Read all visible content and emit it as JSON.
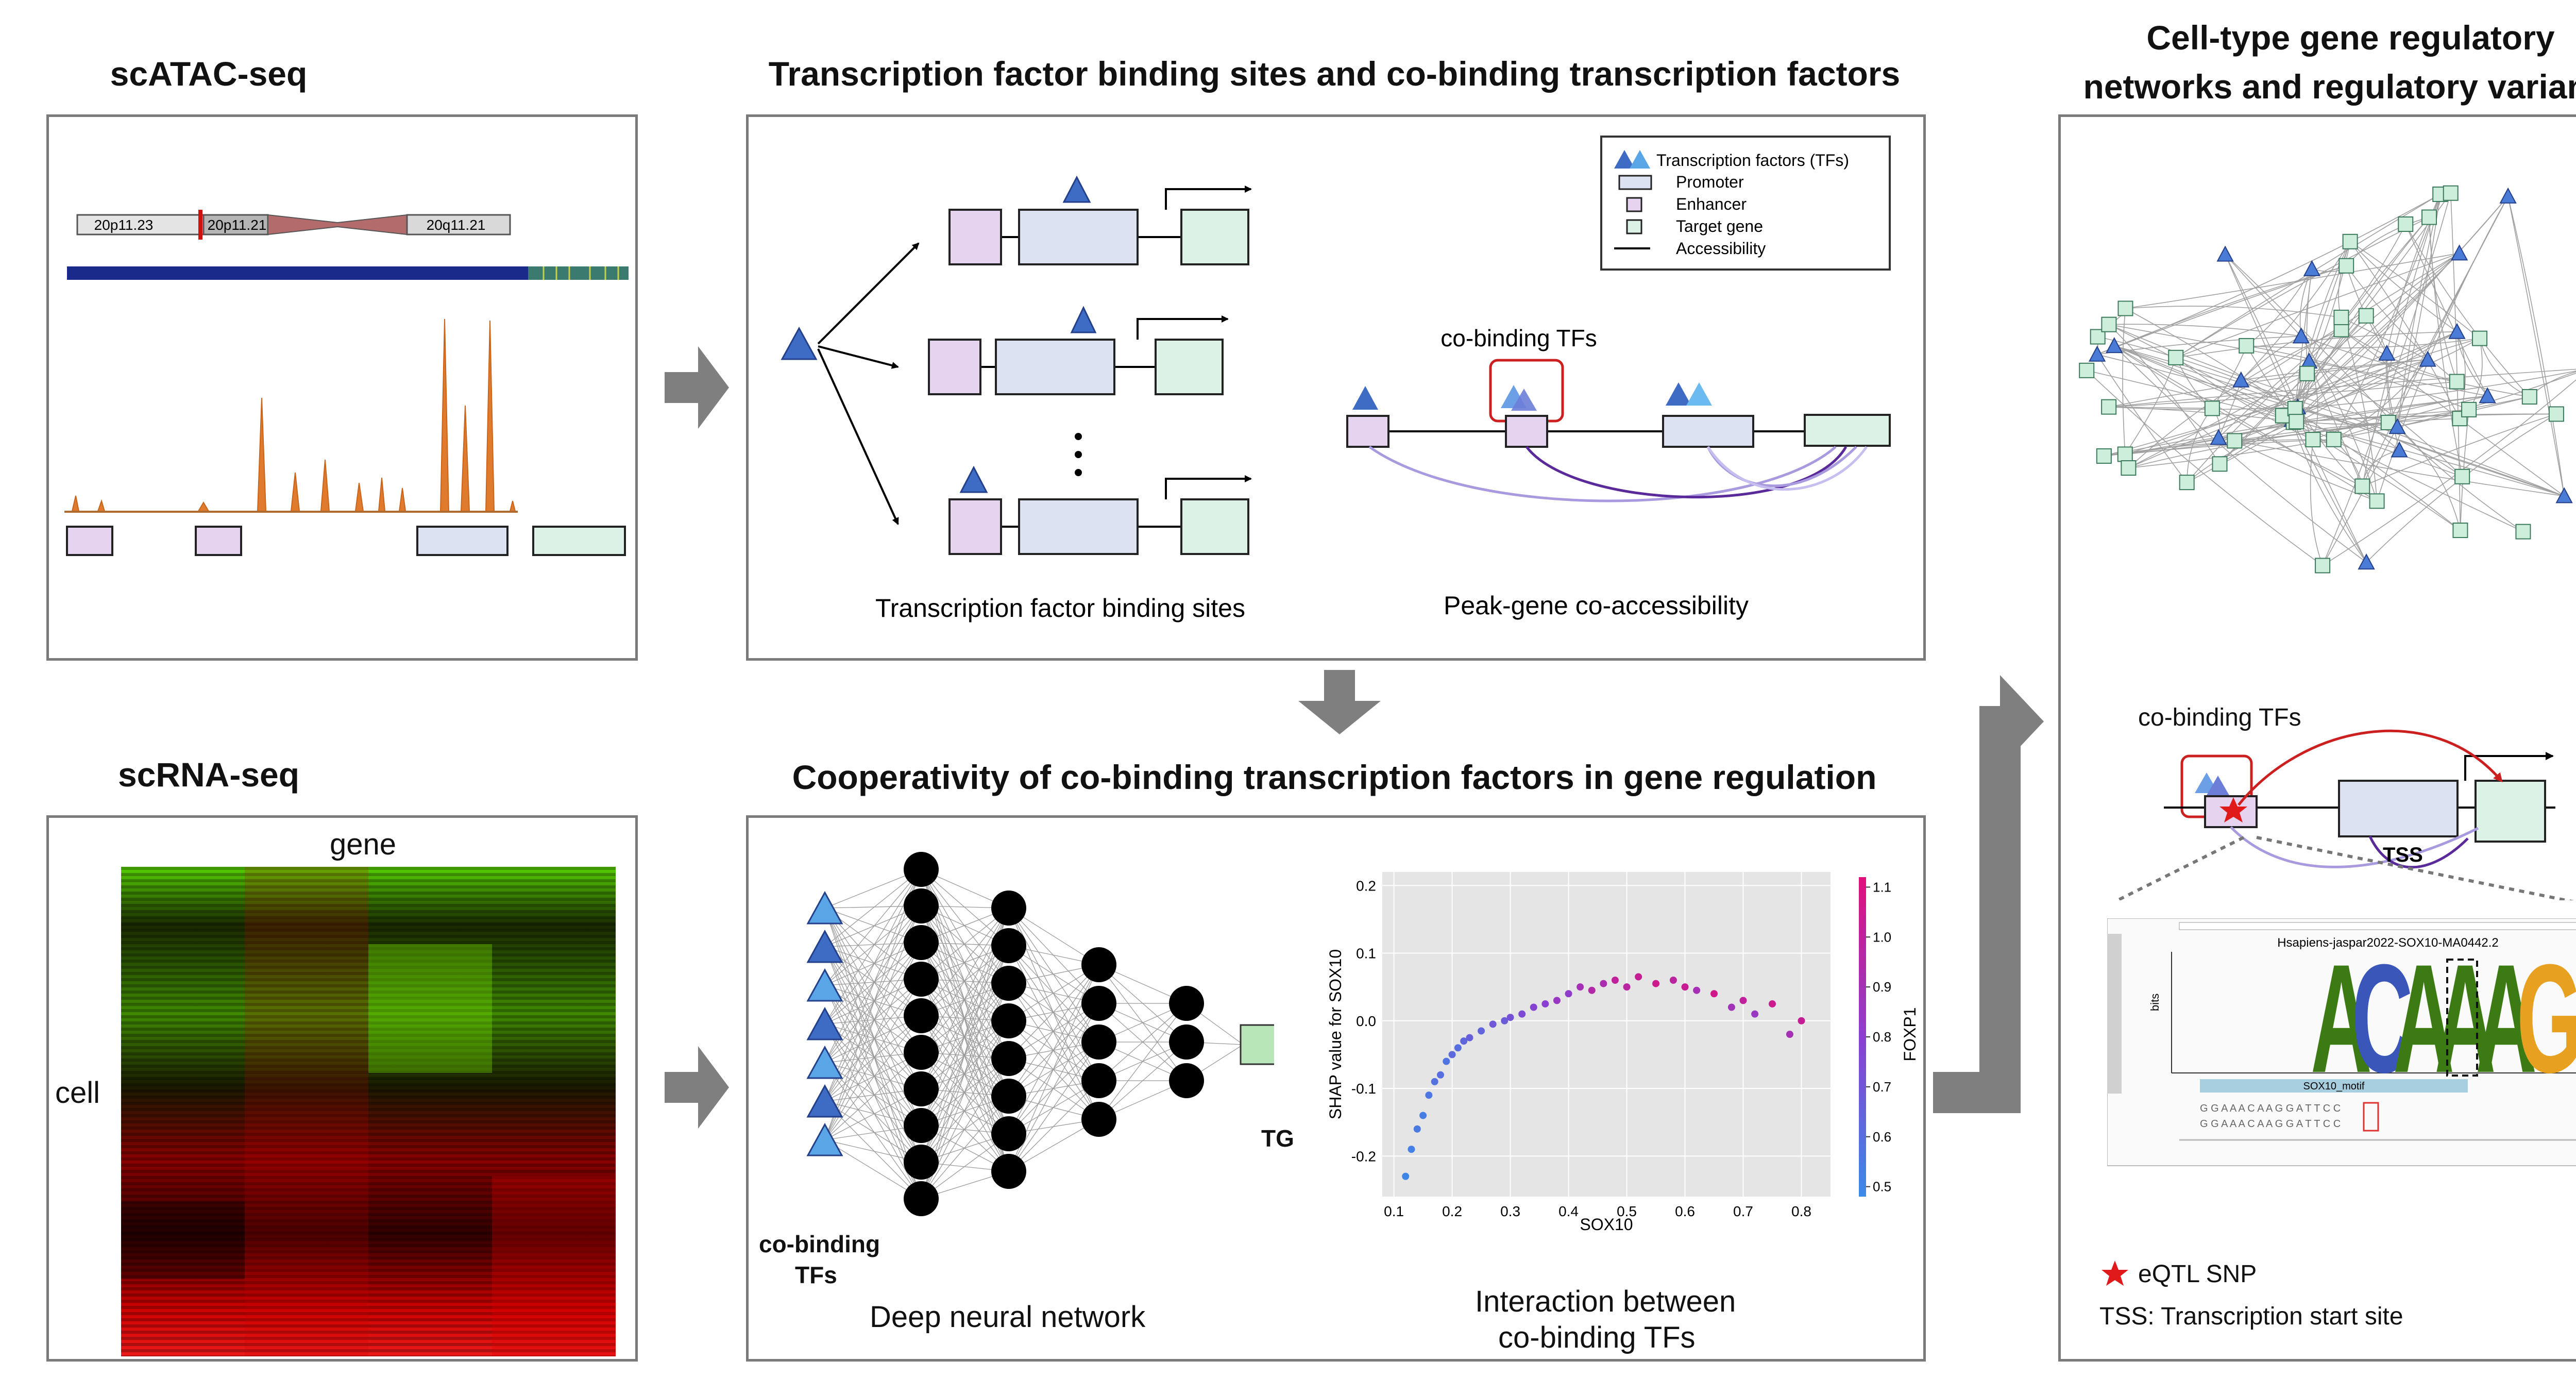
{
  "titles": {
    "scatac": "scATAC-seq",
    "scrna": "scRNA-seq",
    "tfbs": "Transcription factor binding sites and co-binding transcription factors",
    "coop": "Cooperativity of co-binding transcription factors in gene regulation",
    "network_line1": "Cell-type gene regulatory",
    "network_line2": "networks and regulatory variants"
  },
  "scatac": {
    "chrom_bands": [
      "20p11.23",
      "20p11.21",
      "20q11.21"
    ]
  },
  "scrna": {
    "gene_label": "gene",
    "cell_label": "cell"
  },
  "tfbs": {
    "legend": {
      "tfs": "Transcription factors (TFs)",
      "promoter": "Promoter",
      "enhancer": "Enhancer",
      "target_gene": "Target gene",
      "accessibility": "Accessibility"
    },
    "binding_sites_caption": "Transcription factor binding sites",
    "cobinding_label": "co-binding TFs",
    "coaccess_caption": "Peak-gene co-accessibility"
  },
  "coop": {
    "cobinding_label_1": "co-binding",
    "cobinding_label_2": "TFs",
    "tg_label": "TG",
    "dnn_caption": "Deep neural network",
    "interaction_caption_1": "Interaction between",
    "interaction_caption_2": "co-binding TFs"
  },
  "network": {
    "cobinding_label": "co-binding TFs",
    "tss_label": "TSS",
    "motif_title": "Hsapiens-jaspar2022-SOX10-MA0442.2",
    "motif_letters": [
      "A",
      "C",
      "A",
      "A",
      "A",
      "G"
    ],
    "motif_name": "SOX10_motif",
    "bits_label": "bits",
    "eqtl_label": "eQTL SNP",
    "tss_legend": "TSS: Transcription start site"
  },
  "chart_data": {
    "type": "scatter",
    "title": "",
    "xlabel": "SOX10",
    "ylabel": "SHAP value for SOX10",
    "colorbar_label": "FOXP1",
    "xlim": [
      0.08,
      0.85
    ],
    "ylim": [
      -0.26,
      0.22
    ],
    "xticks": [
      "0.1",
      "0.2",
      "0.3",
      "0.4",
      "0.5",
      "0.6",
      "0.7",
      "0.8"
    ],
    "yticks": [
      "0.2",
      "0.1",
      "0.0",
      "-0.1",
      "-0.2"
    ],
    "cticks": [
      "1.1",
      "1.0",
      "0.9",
      "0.8",
      "0.7",
      "0.6",
      "0.5"
    ],
    "clim": [
      0.48,
      1.12
    ],
    "grid": true,
    "points": [
      {
        "x": 0.12,
        "y": -0.23,
        "c": 0.5
      },
      {
        "x": 0.13,
        "y": -0.19,
        "c": 0.52
      },
      {
        "x": 0.14,
        "y": -0.16,
        "c": 0.55
      },
      {
        "x": 0.15,
        "y": -0.14,
        "c": 0.53
      },
      {
        "x": 0.16,
        "y": -0.11,
        "c": 0.56
      },
      {
        "x": 0.17,
        "y": -0.09,
        "c": 0.58
      },
      {
        "x": 0.18,
        "y": -0.08,
        "c": 0.6
      },
      {
        "x": 0.19,
        "y": -0.06,
        "c": 0.57
      },
      {
        "x": 0.2,
        "y": -0.05,
        "c": 0.62
      },
      {
        "x": 0.21,
        "y": -0.04,
        "c": 0.6
      },
      {
        "x": 0.22,
        "y": -0.03,
        "c": 0.63
      },
      {
        "x": 0.23,
        "y": -0.025,
        "c": 0.66
      },
      {
        "x": 0.25,
        "y": -0.015,
        "c": 0.64
      },
      {
        "x": 0.27,
        "y": -0.005,
        "c": 0.7
      },
      {
        "x": 0.29,
        "y": 0.0,
        "c": 0.68
      },
      {
        "x": 0.3,
        "y": 0.005,
        "c": 0.72
      },
      {
        "x": 0.32,
        "y": 0.01,
        "c": 0.75
      },
      {
        "x": 0.34,
        "y": 0.02,
        "c": 0.78
      },
      {
        "x": 0.36,
        "y": 0.025,
        "c": 0.8
      },
      {
        "x": 0.38,
        "y": 0.03,
        "c": 0.85
      },
      {
        "x": 0.4,
        "y": 0.04,
        "c": 0.82
      },
      {
        "x": 0.42,
        "y": 0.05,
        "c": 0.9
      },
      {
        "x": 0.44,
        "y": 0.045,
        "c": 0.95
      },
      {
        "x": 0.46,
        "y": 0.055,
        "c": 0.92
      },
      {
        "x": 0.48,
        "y": 0.06,
        "c": 1.0
      },
      {
        "x": 0.5,
        "y": 0.05,
        "c": 0.97
      },
      {
        "x": 0.52,
        "y": 0.065,
        "c": 1.02
      },
      {
        "x": 0.55,
        "y": 0.055,
        "c": 1.05
      },
      {
        "x": 0.58,
        "y": 0.06,
        "c": 0.98
      },
      {
        "x": 0.6,
        "y": 0.05,
        "c": 1.03
      },
      {
        "x": 0.62,
        "y": 0.045,
        "c": 0.9
      },
      {
        "x": 0.65,
        "y": 0.04,
        "c": 1.06
      },
      {
        "x": 0.68,
        "y": 0.02,
        "c": 0.88
      },
      {
        "x": 0.7,
        "y": 0.03,
        "c": 1.0
      },
      {
        "x": 0.72,
        "y": 0.01,
        "c": 0.85
      },
      {
        "x": 0.75,
        "y": 0.025,
        "c": 1.04
      },
      {
        "x": 0.78,
        "y": -0.02,
        "c": 0.9
      },
      {
        "x": 0.8,
        "y": 0.0,
        "c": 1.02
      }
    ]
  },
  "colors": {
    "tf_dark": "#3e6cc4",
    "tf_light": "#5aa5e6",
    "promoter_fill": "#dde2f3",
    "enhancer_fill": "#e5d3ef",
    "target_fill": "#dcf2e7",
    "tg_fill": "#b8e6b8",
    "peak_orange": "#e07b2e",
    "highlight_red": "#cc1f1f",
    "arrow_grey": "#7f7f7f"
  }
}
